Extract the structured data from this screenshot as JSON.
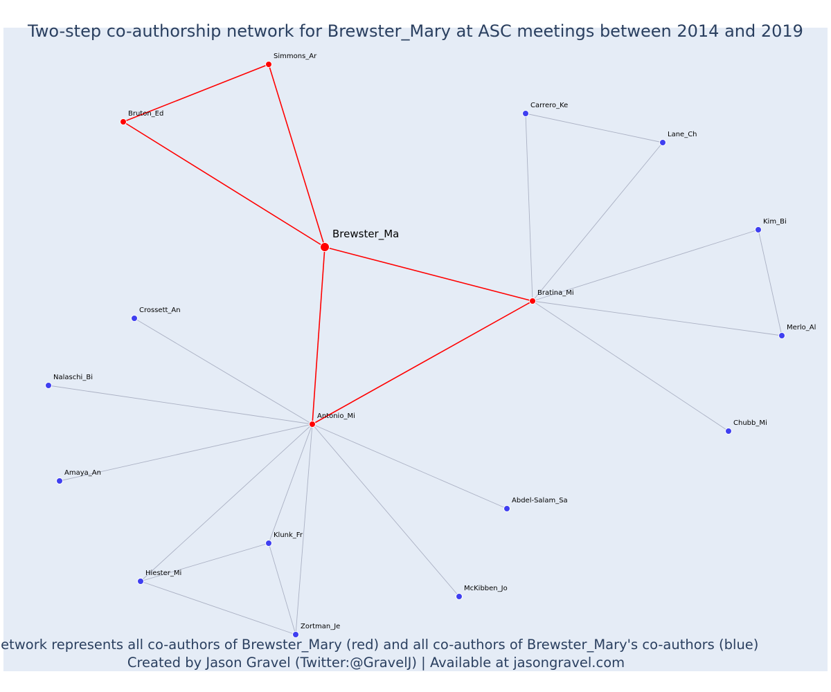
{
  "title": "Two-step co-authorship network for Brewster_Mary at ASC meetings between 2014 and 2019",
  "footer": {
    "line1": "Network represents all co-authors of Brewster_Mary (red) and all co-authors of Brewster_Mary's co-authors (blue)",
    "line2": "Created by Jason Gravel (Twitter:@GravelJ) | Available at jasongravel.com"
  },
  "colors": {
    "background": "#e5ecf6",
    "red": "#ff0000",
    "blue": "#3f3ff0",
    "gray_edge": "#aab0c3",
    "text": "#2a3f5f"
  },
  "network": {
    "nodes": [
      {
        "id": "Brewster_Ma",
        "group": "focal"
      },
      {
        "id": "Simmons_Ar",
        "group": "red"
      },
      {
        "id": "Bruton_Ed",
        "group": "red"
      },
      {
        "id": "Bratina_Mi",
        "group": "red"
      },
      {
        "id": "Antonio_Mi",
        "group": "red"
      },
      {
        "id": "Carrero_Ke",
        "group": "blue"
      },
      {
        "id": "Lane_Ch",
        "group": "blue"
      },
      {
        "id": "Kim_Bi",
        "group": "blue"
      },
      {
        "id": "Merlo_Al",
        "group": "blue"
      },
      {
        "id": "Chubb_Mi",
        "group": "blue"
      },
      {
        "id": "Crossett_An",
        "group": "blue"
      },
      {
        "id": "Nalaschi_Bi",
        "group": "blue"
      },
      {
        "id": "Amaya_An",
        "group": "blue"
      },
      {
        "id": "Abdel-Salam_Sa",
        "group": "blue"
      },
      {
        "id": "Klunk_Fr",
        "group": "blue"
      },
      {
        "id": "Hiester_Mi",
        "group": "blue"
      },
      {
        "id": "McKibben_Jo",
        "group": "blue"
      },
      {
        "id": "Zortman_Je",
        "group": "blue"
      }
    ],
    "edges": [
      {
        "source": "Brewster_Ma",
        "target": "Simmons_Ar",
        "type": "red"
      },
      {
        "source": "Brewster_Ma",
        "target": "Bruton_Ed",
        "type": "red"
      },
      {
        "source": "Simmons_Ar",
        "target": "Bruton_Ed",
        "type": "red"
      },
      {
        "source": "Brewster_Ma",
        "target": "Bratina_Mi",
        "type": "red"
      },
      {
        "source": "Brewster_Ma",
        "target": "Antonio_Mi",
        "type": "red"
      },
      {
        "source": "Antonio_Mi",
        "target": "Bratina_Mi",
        "type": "red"
      },
      {
        "source": "Bratina_Mi",
        "target": "Carrero_Ke",
        "type": "gray"
      },
      {
        "source": "Bratina_Mi",
        "target": "Lane_Ch",
        "type": "gray"
      },
      {
        "source": "Carrero_Ke",
        "target": "Lane_Ch",
        "type": "gray"
      },
      {
        "source": "Bratina_Mi",
        "target": "Kim_Bi",
        "type": "gray"
      },
      {
        "source": "Bratina_Mi",
        "target": "Merlo_Al",
        "type": "gray"
      },
      {
        "source": "Kim_Bi",
        "target": "Merlo_Al",
        "type": "gray"
      },
      {
        "source": "Bratina_Mi",
        "target": "Chubb_Mi",
        "type": "gray"
      },
      {
        "source": "Antonio_Mi",
        "target": "Crossett_An",
        "type": "gray"
      },
      {
        "source": "Antonio_Mi",
        "target": "Nalaschi_Bi",
        "type": "gray"
      },
      {
        "source": "Antonio_Mi",
        "target": "Amaya_An",
        "type": "gray"
      },
      {
        "source": "Antonio_Mi",
        "target": "Abdel-Salam_Sa",
        "type": "gray"
      },
      {
        "source": "Antonio_Mi",
        "target": "Klunk_Fr",
        "type": "gray"
      },
      {
        "source": "Antonio_Mi",
        "target": "Hiester_Mi",
        "type": "gray"
      },
      {
        "source": "Antonio_Mi",
        "target": "McKibben_Jo",
        "type": "gray"
      },
      {
        "source": "Antonio_Mi",
        "target": "Zortman_Je",
        "type": "gray"
      },
      {
        "source": "Klunk_Fr",
        "target": "Hiester_Mi",
        "type": "gray"
      },
      {
        "source": "Klunk_Fr",
        "target": "Zortman_Je",
        "type": "gray"
      },
      {
        "source": "Hiester_Mi",
        "target": "Zortman_Je",
        "type": "gray"
      }
    ]
  }
}
